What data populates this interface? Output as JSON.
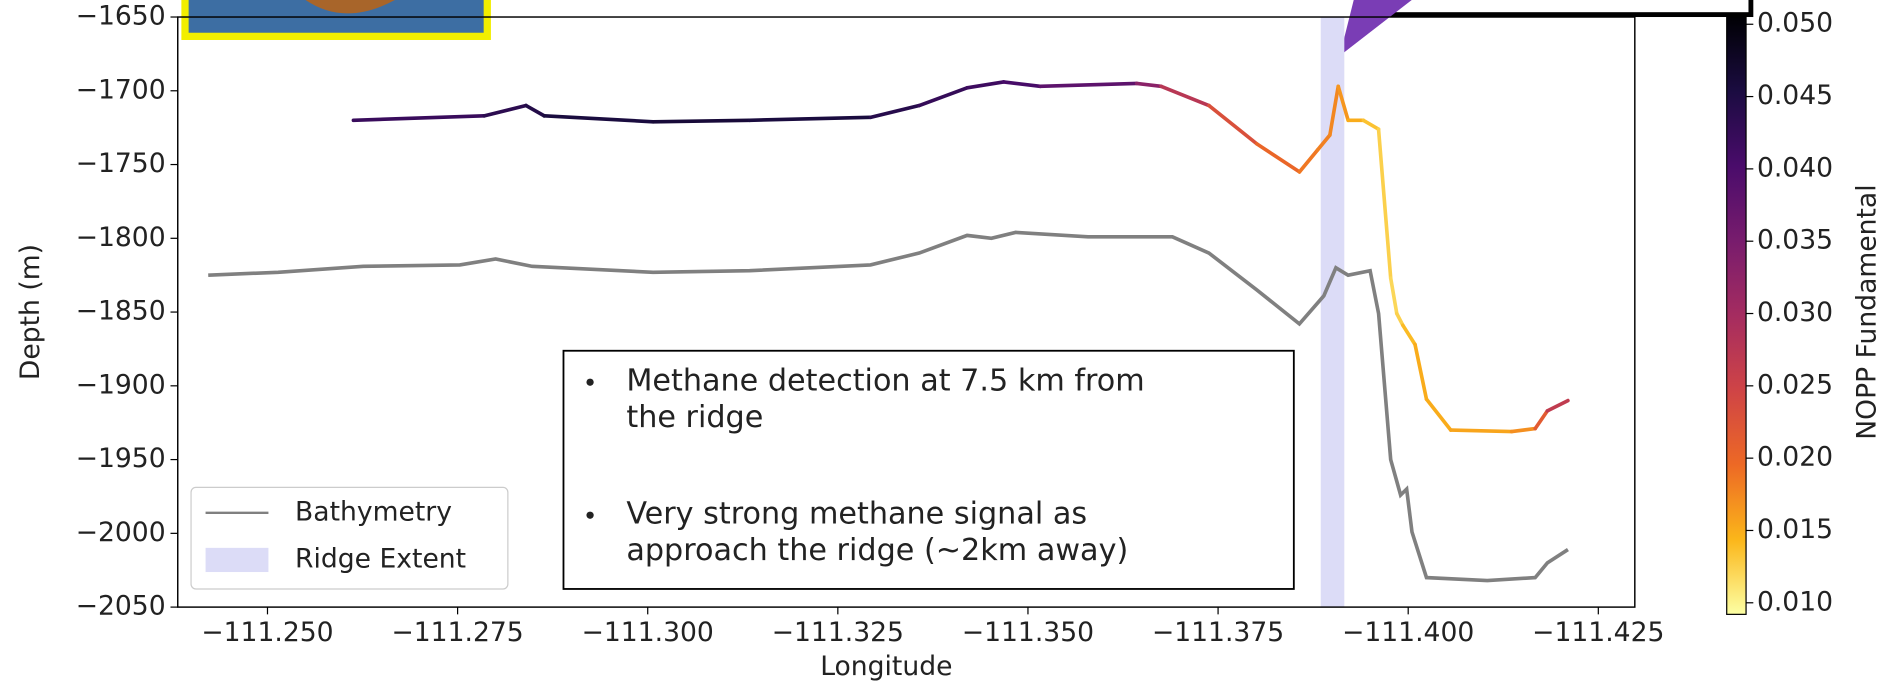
{
  "chart_data": {
    "type": "line",
    "xlabel": "Longitude",
    "ylabel": "Depth (m)",
    "xlim": [
      -111.2382,
      -111.4298
    ],
    "ylim": [
      -2050,
      -1650
    ],
    "xticks": [
      {
        "value": -111.25,
        "label": "−111.250"
      },
      {
        "value": -111.275,
        "label": "−111.275"
      },
      {
        "value": -111.3,
        "label": "−111.300"
      },
      {
        "value": -111.325,
        "label": "−111.325"
      },
      {
        "value": -111.35,
        "label": "−111.350"
      },
      {
        "value": -111.375,
        "label": "−111.375"
      },
      {
        "value": -111.4,
        "label": "−111.400"
      },
      {
        "value": -111.425,
        "label": "−111.425"
      }
    ],
    "yticks": [
      {
        "value": -1650,
        "label": "−1650"
      },
      {
        "value": -1700,
        "label": "−1700"
      },
      {
        "value": -1750,
        "label": "−1750"
      },
      {
        "value": -1800,
        "label": "−1800"
      },
      {
        "value": -1850,
        "label": "−1850"
      },
      {
        "value": -1900,
        "label": "−1900"
      },
      {
        "value": -1950,
        "label": "−1950"
      },
      {
        "value": -2000,
        "label": "−2000"
      },
      {
        "value": -2050,
        "label": "−2050"
      }
    ],
    "series": [
      {
        "name": "Bathymetry",
        "color": "#808080",
        "x": [
          -111.2422,
          -111.2514,
          -111.2626,
          -111.2753,
          -111.28,
          -111.2848,
          -111.3007,
          -111.3134,
          -111.3293,
          -111.3357,
          -111.342,
          -111.3452,
          -111.3484,
          -111.3579,
          -111.369,
          -111.3738,
          -111.3801,
          -111.3857,
          -111.3889,
          -111.3905,
          -111.3921,
          -111.395,
          -111.3961,
          -111.3977,
          -111.399,
          -111.3998,
          -111.4005,
          -111.4024,
          -111.4104,
          -111.4167,
          -111.4183,
          -111.421
        ],
        "values": [
          -1825,
          -1823,
          -1819,
          -1818,
          -1814,
          -1819,
          -1823,
          -1822,
          -1818,
          -1810,
          -1798,
          -1800,
          -1796,
          -1799,
          -1799,
          -1810,
          -1835,
          -1858,
          -1839,
          -1820,
          -1825,
          -1822,
          -1851,
          -1950,
          -1974,
          -1970,
          -1999,
          -2030,
          -2032,
          -2030,
          -2020,
          -2011
        ]
      },
      {
        "x": [
          -111.2613,
          -111.2785,
          -111.284,
          -111.2864,
          -111.3007,
          -111.3134,
          -111.3293,
          -111.3357,
          -111.342,
          -111.3468,
          -111.3516,
          -111.3643,
          -111.3675,
          -111.3738,
          -111.3801,
          -111.3857,
          -111.3881,
          -111.3897,
          -111.3908,
          -111.3921,
          -111.3941,
          -111.3961,
          -111.3977,
          -111.3985,
          -111.3993,
          -111.4009,
          -111.4024,
          -111.4056,
          -111.4136,
          -111.4167,
          -111.4183,
          -111.421
        ],
        "values": [
          -1720,
          -1717,
          -1710,
          -1717,
          -1721,
          -1720,
          -1718,
          -1710,
          -1698,
          -1694,
          -1697,
          -1695,
          -1697,
          -1710,
          -1736,
          -1755,
          -1740,
          -1730,
          -1697,
          -1720,
          -1720,
          -1726,
          -1827,
          -1851,
          -1859,
          -1872,
          -1909,
          -1930,
          -1931,
          -1929,
          -1917,
          -1910
        ],
        "z": [
          0.041,
          0.043,
          0.044,
          0.045,
          0.046,
          0.046,
          0.045,
          0.043,
          0.042,
          0.041,
          0.04,
          0.036,
          0.03,
          0.025,
          0.021,
          0.019,
          0.018,
          0.018,
          0.017,
          0.016,
          0.014,
          0.013,
          0.012,
          0.012,
          0.013,
          0.015,
          0.015,
          0.015,
          0.016,
          0.018,
          0.025,
          0.028
        ]
      }
    ],
    "spans": [
      {
        "name": "Ridge Extent",
        "x": [
          -111.3885,
          -111.3916
        ],
        "color": "#dcdcf7"
      }
    ],
    "legend": "lower left",
    "colorbar": {
      "label": "NOPP Fundamental",
      "lim": [
        0.0092,
        0.0505
      ],
      "ticks": [
        {
          "value": 0.01,
          "label": "0.010"
        },
        {
          "value": 0.015,
          "label": "0.015"
        },
        {
          "value": 0.02,
          "label": "0.020"
        },
        {
          "value": 0.025,
          "label": "0.025"
        },
        {
          "value": 0.03,
          "label": "0.030"
        },
        {
          "value": 0.035,
          "label": "0.035"
        },
        {
          "value": 0.04,
          "label": "0.040"
        },
        {
          "value": 0.045,
          "label": "0.045"
        },
        {
          "value": 0.05,
          "label": "0.050"
        }
      ],
      "colormap": [
        "#fcffa4",
        "#fbb61a",
        "#ed6925",
        "#cf4446",
        "#a52c60",
        "#781c6d",
        "#4a0c6b",
        "#1b0c41",
        "#000004"
      ]
    },
    "annotations": [
      [
        "Methane detection at 7.5 km from",
        "the ridge"
      ],
      [
        "Very strong methane signal as",
        "approach the ridge (~2km away)"
      ]
    ]
  }
}
